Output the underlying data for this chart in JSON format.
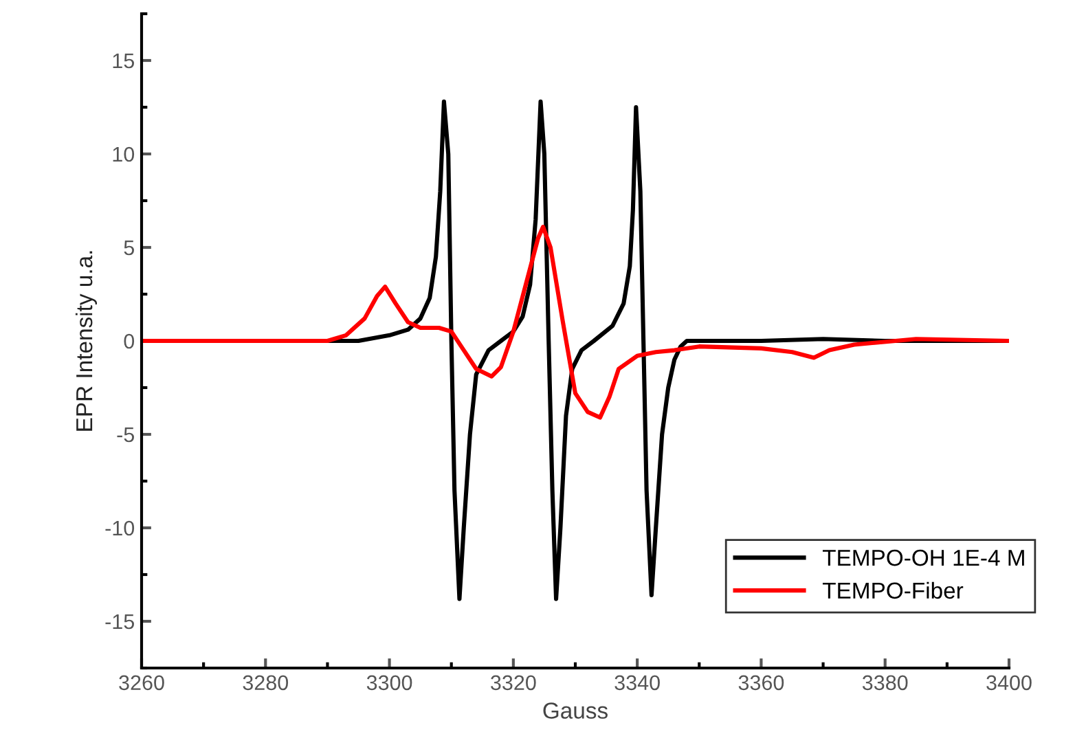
{
  "chart_data": {
    "type": "line",
    "xlabel": "Gauss",
    "ylabel": "EPR Intensity u.a.",
    "xlim": [
      3260,
      3400
    ],
    "ylim": [
      -17.5,
      17.5
    ],
    "xticks": [
      3260,
      3280,
      3300,
      3320,
      3340,
      3360,
      3380,
      3400
    ],
    "yticks": [
      -15,
      -10,
      -5,
      0,
      5,
      10,
      15
    ],
    "grid": false,
    "legend": "bottom right",
    "marker": "none",
    "line_style": "solid",
    "series": [
      {
        "name": "TEMPO-OH 1E-4 M",
        "color": "#000000",
        "x": [
          3260,
          3280,
          3290,
          3295,
          3300,
          3303,
          3305,
          3306.5,
          3307.5,
          3308.2,
          3308.8,
          3309.5,
          3310,
          3310.5,
          3311.3,
          3312,
          3313,
          3314,
          3316,
          3318,
          3320,
          3321.5,
          3322.7,
          3323.6,
          3324.4,
          3325,
          3325.7,
          3326.3,
          3326.9,
          3327.6,
          3328.5,
          3329.5,
          3331,
          3333,
          3336,
          3337.8,
          3338.8,
          3339.3,
          3339.8,
          3340.5,
          3341,
          3341.5,
          3342.3,
          3343,
          3344,
          3345,
          3346,
          3347,
          3348,
          3360,
          3370,
          3380,
          3400
        ],
        "values": [
          0,
          0,
          0,
          0,
          0.3,
          0.6,
          1.2,
          2.3,
          4.5,
          8,
          12.8,
          10,
          0,
          -8,
          -13.8,
          -10,
          -5,
          -1.8,
          -0.5,
          0,
          0.5,
          1.3,
          3,
          6.5,
          12.8,
          10,
          0,
          -8,
          -13.8,
          -10,
          -4,
          -1.5,
          -0.5,
          0,
          0.8,
          2,
          4,
          7,
          12.5,
          8,
          0,
          -8,
          -13.6,
          -10,
          -5,
          -2.5,
          -1,
          -0.3,
          0,
          0,
          0.1,
          0,
          0
        ]
      },
      {
        "name": "TEMPO-Fiber",
        "color": "#ff0000",
        "x": [
          3260,
          3280,
          3290,
          3293,
          3296,
          3298,
          3299.3,
          3301,
          3303,
          3305,
          3308,
          3310,
          3312,
          3314,
          3316.5,
          3318,
          3320,
          3322,
          3324,
          3324.8,
          3326,
          3328,
          3330,
          3332,
          3334,
          3335.5,
          3337,
          3340,
          3343,
          3346,
          3350,
          3360,
          3365,
          3368.5,
          3371,
          3375,
          3385,
          3400
        ],
        "values": [
          0,
          0,
          0,
          0.3,
          1.2,
          2.4,
          2.9,
          2,
          1,
          0.7,
          0.7,
          0.5,
          -0.5,
          -1.5,
          -1.9,
          -1.4,
          0.5,
          3,
          5.5,
          6.1,
          5,
          1,
          -2.8,
          -3.8,
          -4.1,
          -3,
          -1.5,
          -0.8,
          -0.6,
          -0.5,
          -0.3,
          -0.4,
          -0.6,
          -0.9,
          -0.5,
          -0.2,
          0.1,
          0
        ]
      }
    ]
  }
}
